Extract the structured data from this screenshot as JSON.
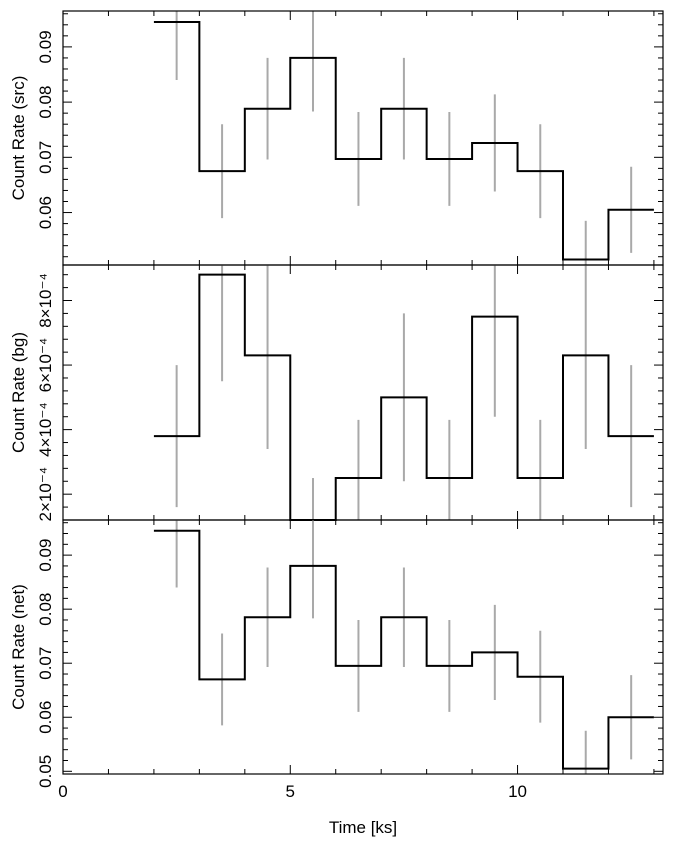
{
  "chart_data": [
    {
      "type": "line",
      "ylabel": "Count Rate (src)",
      "xlabel": "",
      "xlim": [
        0,
        13.2
      ],
      "ylim": [
        0.0505,
        0.0965
      ],
      "x_ticks": [
        0,
        5,
        10
      ],
      "x_ticklabels": [
        "",
        "",
        ""
      ],
      "y_ticks": [
        0.06,
        0.07,
        0.08,
        0.09
      ],
      "y_ticklabels": [
        "0.06",
        "0.07",
        "0.08",
        "0.09"
      ],
      "bin_edges": [
        2,
        3,
        4,
        5,
        6,
        7,
        8,
        9,
        10,
        11,
        12,
        13
      ],
      "values": [
        0.0945,
        0.0675,
        0.0788,
        0.088,
        0.0697,
        0.0788,
        0.0697,
        0.0726,
        0.0675,
        0.0515,
        0.0605
      ],
      "errors": [
        0.0105,
        0.0085,
        0.0092,
        0.0097,
        0.0085,
        0.0092,
        0.0085,
        0.0088,
        0.0085,
        0.007,
        0.0078
      ]
    },
    {
      "type": "line",
      "ylabel": "Count Rate (bg)",
      "xlabel": "",
      "xlim": [
        0,
        13.2
      ],
      "ylim": [
        0.00012,
        0.00091
      ],
      "x_ticks": [
        0,
        5,
        10
      ],
      "x_ticklabels": [
        "",
        "",
        ""
      ],
      "y_ticks": [
        0.0002,
        0.0004,
        0.0006,
        0.0008
      ],
      "y_ticklabels": [
        "2×10⁻⁴",
        "4×10⁻⁴",
        "6×10⁻⁴",
        "8×10⁻⁴"
      ],
      "bin_edges": [
        2,
        3,
        4,
        5,
        6,
        7,
        8,
        9,
        10,
        11,
        12,
        13
      ],
      "values": [
        0.00038,
        0.00088,
        0.00063,
        0.00012,
        0.00025,
        0.0005,
        0.00025,
        0.00075,
        0.00025,
        0.00063,
        0.00038
      ],
      "errors": [
        0.00022,
        0.00033,
        0.00029,
        0.00013,
        0.00018,
        0.00026,
        0.00018,
        0.00031,
        0.00018,
        0.00029,
        0.00022
      ]
    },
    {
      "type": "line",
      "ylabel": "Count Rate (net)",
      "xlabel": "Time [ks]",
      "xlim": [
        0,
        13.2
      ],
      "ylim": [
        0.0495,
        0.0965
      ],
      "x_ticks": [
        0,
        5,
        10
      ],
      "x_ticklabels": [
        "0",
        "5",
        "10"
      ],
      "y_ticks": [
        0.05,
        0.06,
        0.07,
        0.08,
        0.09
      ],
      "y_ticklabels": [
        "0.05",
        "0.06",
        "0.07",
        "0.08",
        "0.09"
      ],
      "bin_edges": [
        2,
        3,
        4,
        5,
        6,
        7,
        8,
        9,
        10,
        11,
        12,
        13
      ],
      "values": [
        0.0945,
        0.067,
        0.0785,
        0.088,
        0.0695,
        0.0785,
        0.0695,
        0.072,
        0.0675,
        0.0505,
        0.06
      ],
      "errors": [
        0.0105,
        0.0085,
        0.0092,
        0.0097,
        0.0085,
        0.0092,
        0.0085,
        0.0088,
        0.0085,
        0.007,
        0.0078
      ]
    }
  ]
}
